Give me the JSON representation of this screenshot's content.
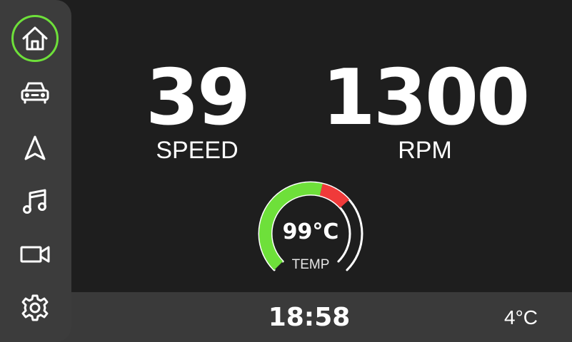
{
  "sidebar": {
    "items": [
      {
        "icon": "home-icon",
        "active": true
      },
      {
        "icon": "car-icon",
        "active": false
      },
      {
        "icon": "navigation-icon",
        "active": false
      },
      {
        "icon": "music-icon",
        "active": false
      },
      {
        "icon": "camera-icon",
        "active": false
      },
      {
        "icon": "settings-icon",
        "active": false
      }
    ],
    "active_color": "#6ee03a"
  },
  "dashboard": {
    "speed": {
      "value": "39",
      "label": "SPEED"
    },
    "rpm": {
      "value": "1300",
      "label": "RPM"
    },
    "temp_gauge": {
      "value_text": "99°C",
      "label": "TEMP",
      "level": 0.68,
      "warning_threshold": 0.55,
      "normal_color": "#6ee03a",
      "warning_color": "#f03a3a"
    }
  },
  "status_bar": {
    "clock": "18:58",
    "outside_temp": "4°C"
  }
}
